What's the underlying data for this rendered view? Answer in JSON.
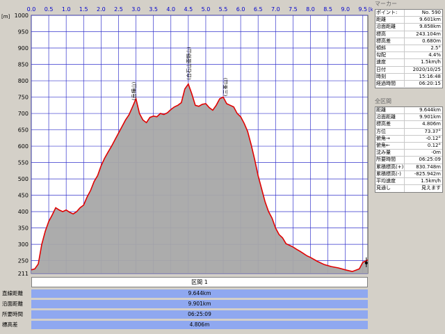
{
  "chart_data": {
    "type": "area",
    "x_unit": "[km]",
    "y_unit": "[m]",
    "xlim": [
      0,
      9.644
    ],
    "ylim": [
      211,
      1000
    ],
    "x_ticks": [
      "0.0",
      "0.5",
      "1.0",
      "1.5",
      "2.0",
      "2.5",
      "3.0",
      "3.5",
      "4.0",
      "4.5",
      "5.0",
      "5.5",
      "6.0",
      "6.5",
      "7.0",
      "7.5",
      "8.0",
      "8.5",
      "9.0",
      "9.5"
    ],
    "x_tick_values": [
      0,
      0.5,
      1,
      1.5,
      2,
      2.5,
      3,
      3.5,
      4,
      4.5,
      5,
      5.5,
      6,
      6.5,
      7,
      7.5,
      8,
      8.5,
      9,
      9.5
    ],
    "y_ticks": [
      "1000",
      "950",
      "900",
      "850",
      "800",
      "750",
      "700",
      "650",
      "600",
      "550",
      "500",
      "450",
      "400",
      "350",
      "300",
      "250",
      "211"
    ],
    "y_tick_values": [
      1000,
      950,
      900,
      850,
      800,
      750,
      700,
      650,
      600,
      550,
      500,
      450,
      400,
      350,
      300,
      250,
      211
    ],
    "grid": true,
    "series": [
      {
        "color": "#e00000",
        "x": [
          0,
          0.1,
          0.2,
          0.3,
          0.4,
          0.5,
          0.6,
          0.7,
          0.8,
          0.9,
          1.0,
          1.1,
          1.2,
          1.3,
          1.4,
          1.5,
          1.6,
          1.7,
          1.8,
          1.9,
          2.0,
          2.1,
          2.2,
          2.3,
          2.4,
          2.5,
          2.6,
          2.7,
          2.8,
          2.9,
          3.0,
          3.1,
          3.2,
          3.3,
          3.4,
          3.5,
          3.6,
          3.7,
          3.8,
          3.9,
          4.0,
          4.1,
          4.2,
          4.3,
          4.4,
          4.5,
          4.6,
          4.7,
          4.8,
          4.9,
          5.0,
          5.1,
          5.2,
          5.3,
          5.4,
          5.5,
          5.6,
          5.7,
          5.8,
          5.9,
          6.0,
          6.1,
          6.2,
          6.3,
          6.4,
          6.5,
          6.6,
          6.7,
          6.8,
          6.9,
          7.0,
          7.1,
          7.2,
          7.3,
          7.4,
          7.5,
          7.6,
          7.7,
          7.8,
          7.9,
          8.0,
          8.2,
          8.4,
          8.6,
          8.8,
          9.0,
          9.2,
          9.4,
          9.5,
          9.6,
          9.644
        ],
        "y": [
          222,
          225,
          240,
          300,
          340,
          370,
          390,
          412,
          405,
          400,
          405,
          398,
          393,
          400,
          412,
          420,
          445,
          465,
          492,
          510,
          540,
          563,
          582,
          600,
          620,
          640,
          660,
          680,
          696,
          720,
          745,
          700,
          680,
          672,
          688,
          692,
          690,
          700,
          697,
          702,
          712,
          720,
          725,
          733,
          775,
          790,
          760,
          725,
          722,
          728,
          730,
          718,
          710,
          725,
          745,
          750,
          730,
          725,
          720,
          700,
          690,
          670,
          645,
          605,
          560,
          510,
          470,
          430,
          400,
          380,
          350,
          330,
          320,
          302,
          297,
          292,
          285,
          279,
          272,
          265,
          260,
          248,
          238,
          232,
          228,
          222,
          217,
          225,
          245,
          250,
          252
        ]
      }
    ]
  },
  "annotations": [
    {
      "label": "(岳樺山)",
      "x": 2.93
    },
    {
      "label": "(白石山菅野山)",
      "x": 4.5
    },
    {
      "label": "(三峯山)",
      "x": 5.55
    }
  ],
  "summary": {
    "title": "区間 1",
    "rows": [
      {
        "label": "直線距離",
        "value": "9.644km"
      },
      {
        "label": "沿面距離",
        "value": "9.901km"
      },
      {
        "label": "所要時間",
        "value": "06:25:09"
      },
      {
        "label": "標高差",
        "value": "4.806m"
      }
    ]
  },
  "marker": {
    "title": "マーカー",
    "rows": [
      {
        "key": "ポイント:",
        "value": "No. 590"
      },
      {
        "key": "距離",
        "value": "9.601km"
      },
      {
        "key": "沿面距離",
        "value": "9.858km"
      },
      {
        "key": "標高",
        "value": "243.104m"
      },
      {
        "key": "標高差",
        "value": "0.680m"
      },
      {
        "key": "傾斜",
        "value": "2.5°"
      },
      {
        "key": "勾配",
        "value": "4.4%"
      },
      {
        "key": "速度",
        "value": "1.5km/h"
      },
      {
        "key": "日付",
        "value": "2020/10/25"
      },
      {
        "key": "時刻",
        "value": "15:16:48"
      },
      {
        "key": "経過時間",
        "value": "06:20:15"
      }
    ]
  },
  "section": {
    "title": "全区間",
    "rows": [
      {
        "key": "距離",
        "value": "9.644km"
      },
      {
        "key": "沿面距離",
        "value": "9.901km"
      },
      {
        "key": "標高差",
        "value": "4.806m"
      },
      {
        "key": "方位",
        "value": "73.37°"
      },
      {
        "key": "俯角→",
        "value": "-0.12°"
      },
      {
        "key": "俯角←",
        "value": "0.12°"
      },
      {
        "key": "沈み量",
        "value": "-0m"
      },
      {
        "key": "所要時間",
        "value": "06:25:09"
      },
      {
        "key": "累積標高(+)",
        "value": "830.748m"
      },
      {
        "key": "累積標高(-)",
        "value": "-825.942m"
      },
      {
        "key": "平均速度",
        "value": "1.5km/h"
      },
      {
        "key": "見通し",
        "value": "見えます"
      }
    ]
  }
}
